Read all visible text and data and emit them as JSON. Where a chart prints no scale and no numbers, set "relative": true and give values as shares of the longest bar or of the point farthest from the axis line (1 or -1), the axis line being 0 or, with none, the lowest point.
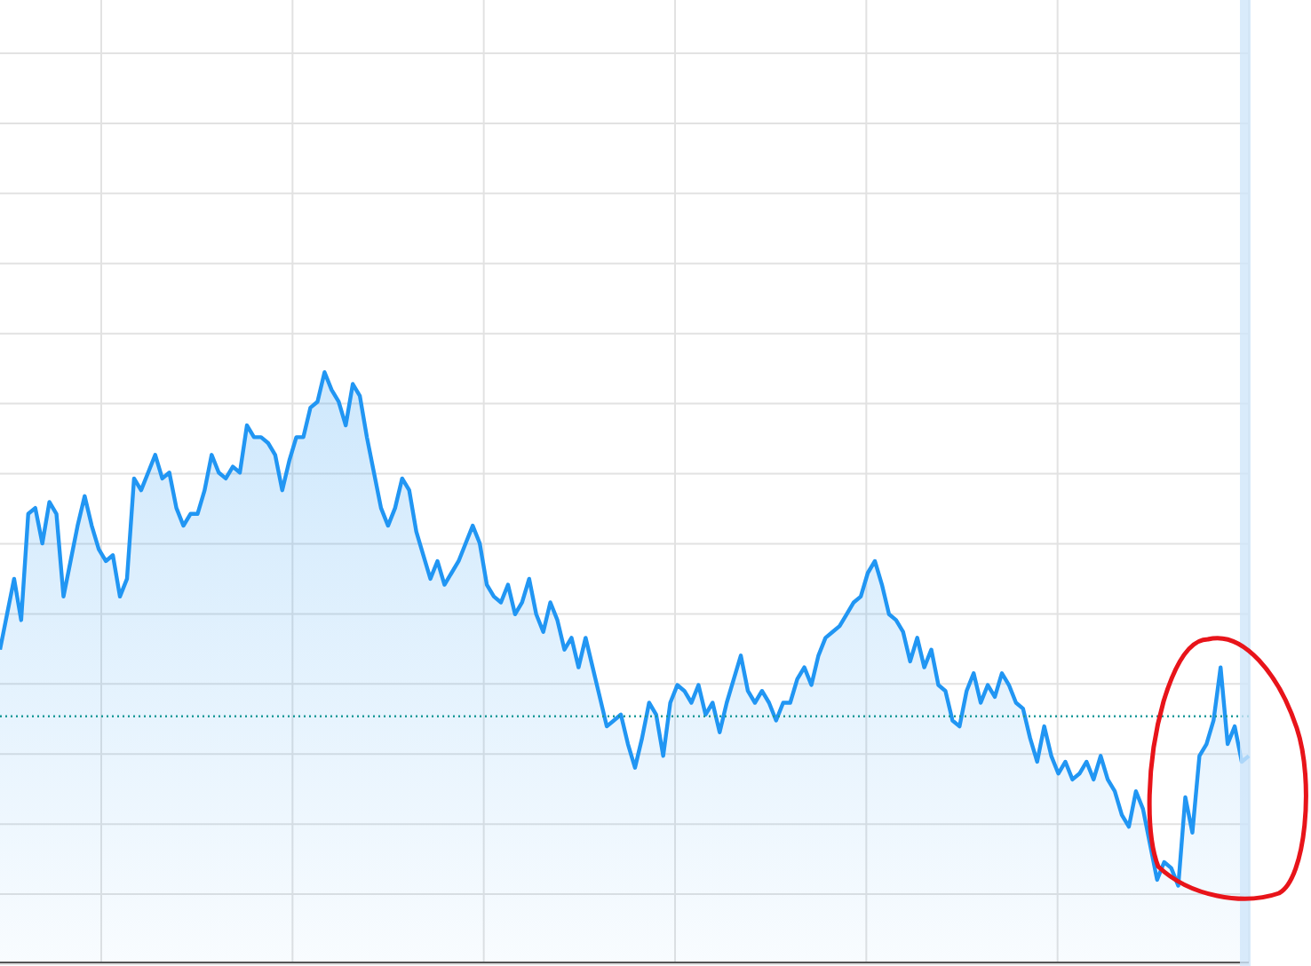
{
  "chart_data": {
    "type": "area",
    "relative": true,
    "grid": true,
    "color": "#2196f3",
    "categories": [
      null,
      null,
      null,
      null,
      null,
      null,
      null,
      null,
      null,
      null,
      null,
      null,
      null,
      null,
      null,
      null,
      null,
      null,
      null,
      null,
      null,
      null,
      null,
      null,
      null,
      null,
      null,
      null,
      null,
      null,
      null,
      null,
      null,
      null,
      null,
      null,
      null,
      null,
      null,
      null,
      null,
      null,
      null,
      null,
      null,
      null,
      null,
      null,
      null,
      null,
      null,
      null,
      null,
      null,
      null,
      null,
      null,
      null,
      null,
      null,
      null,
      null,
      null,
      null,
      null,
      null,
      null,
      null,
      null,
      null,
      null,
      null,
      null,
      null,
      null,
      null,
      null,
      null,
      null,
      null,
      null,
      null,
      null,
      null,
      null,
      null,
      null,
      null,
      null,
      null,
      null,
      null,
      null,
      null,
      null,
      null,
      null,
      null,
      null,
      null,
      null,
      null,
      null,
      null,
      null,
      null,
      null,
      null,
      null,
      null,
      null,
      null,
      null,
      null,
      null,
      null,
      null,
      null,
      null,
      null,
      null,
      null,
      null,
      null,
      null,
      null,
      null,
      null,
      null,
      null,
      null,
      null,
      null,
      null,
      null,
      null,
      null,
      null,
      null,
      null,
      null,
      null,
      null,
      null,
      null,
      null,
      null,
      null,
      null,
      null,
      null,
      null,
      null,
      null,
      null,
      null,
      null,
      null,
      null,
      null,
      null,
      null,
      null,
      null,
      null,
      null,
      null,
      null,
      null,
      null,
      null,
      null,
      null,
      null,
      null,
      null,
      null,
      null
    ],
    "values": [
      0.53,
      0.59,
      0.65,
      0.58,
      0.76,
      0.77,
      0.71,
      0.78,
      0.76,
      0.62,
      0.68,
      0.74,
      0.79,
      0.74,
      0.7,
      0.68,
      0.69,
      0.62,
      0.65,
      0.82,
      0.8,
      0.83,
      0.86,
      0.82,
      0.83,
      0.77,
      0.74,
      0.76,
      0.76,
      0.8,
      0.86,
      0.83,
      0.82,
      0.84,
      0.83,
      0.91,
      0.89,
      0.89,
      0.88,
      0.86,
      0.8,
      0.85,
      0.89,
      0.89,
      0.94,
      0.95,
      1,
      0.97,
      0.95,
      0.91,
      0.98,
      0.96,
      0.89,
      0.83,
      0.77,
      0.74,
      0.77,
      0.82,
      0.8,
      0.73,
      0.69,
      0.65,
      0.68,
      0.64,
      0.66,
      0.68,
      0.71,
      0.74,
      0.71,
      0.64,
      0.62,
      0.61,
      0.64,
      0.59,
      0.61,
      0.65,
      0.59,
      0.56,
      0.61,
      0.58,
      0.53,
      0.55,
      0.5,
      0.55,
      0.5,
      0.45,
      0.4,
      0.41,
      0.42,
      0.37,
      0.33,
      0.38,
      0.44,
      0.42,
      0.35,
      0.44,
      0.47,
      0.46,
      0.44,
      0.47,
      0.42,
      0.44,
      0.39,
      0.44,
      0.48,
      0.52,
      0.46,
      0.44,
      0.46,
      0.44,
      0.41,
      0.44,
      0.44,
      0.48,
      0.5,
      0.47,
      0.52,
      0.55,
      0.56,
      0.57,
      0.59,
      0.61,
      0.62,
      0.66,
      0.68,
      0.64,
      0.59,
      0.58,
      0.56,
      0.51,
      0.55,
      0.5,
      0.53,
      0.47,
      0.46,
      0.41,
      0.4,
      0.46,
      0.49,
      0.44,
      0.47,
      0.45,
      0.49,
      0.47,
      0.44,
      0.43,
      0.38,
      0.34,
      0.4,
      0.35,
      0.32,
      0.34,
      0.31,
      0.32,
      0.34,
      0.31,
      0.35,
      0.31,
      0.29,
      0.25,
      0.23,
      0.29,
      0.26,
      0.2,
      0.14,
      0.17,
      0.16,
      0.13,
      0.28,
      0.22,
      0.35,
      0.37,
      0.41,
      0.5,
      0.37,
      0.4,
      0.34,
      0.35
    ],
    "ref_lines": [
      {
        "axis": "y",
        "value": 0.417,
        "color": "#1a9a9a",
        "line_style": "dotted"
      }
    ]
  }
}
